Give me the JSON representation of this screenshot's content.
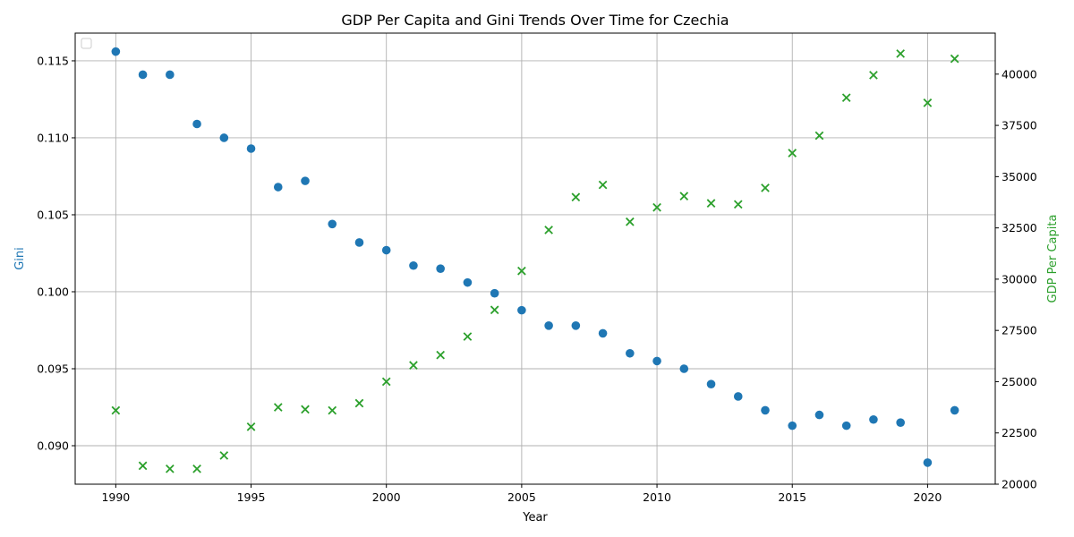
{
  "chart_data": {
    "type": "scatter",
    "title": "GDP Per Capita and Gini Trends Over Time for Czechia",
    "xlabel": "Year",
    "ylabel_left": "Gini",
    "ylabel_right": "GDP Per Capita",
    "xlim": [
      1988.5,
      2022.5
    ],
    "ylim_left": [
      0.0875,
      0.1168
    ],
    "ylim_right": [
      20000,
      42000
    ],
    "x_ticks": [
      1990,
      1995,
      2000,
      2005,
      2010,
      2015,
      2020
    ],
    "y_ticks_left": [
      0.09,
      0.095,
      0.1,
      0.105,
      0.11,
      0.115
    ],
    "y_tick_labels_left": [
      "0.090",
      "0.095",
      "0.100",
      "0.105",
      "0.110",
      "0.115"
    ],
    "y_ticks_right": [
      20000,
      22500,
      25000,
      27500,
      30000,
      32500,
      35000,
      37500,
      40000
    ],
    "grid": true,
    "legend": "upper-left (empty)",
    "colors": {
      "gini": "#1f77b4",
      "gdp": "#2ca02c"
    },
    "series": [
      {
        "name": "Gini",
        "axis": "left",
        "marker": "circle",
        "x": [
          1990,
          1991,
          1992,
          1993,
          1994,
          1995,
          1996,
          1997,
          1998,
          1999,
          2000,
          2001,
          2002,
          2003,
          2004,
          2005,
          2006,
          2007,
          2008,
          2009,
          2010,
          2011,
          2012,
          2013,
          2014,
          2015,
          2016,
          2017,
          2018,
          2019,
          2020,
          2021
        ],
        "y": [
          0.1156,
          0.1141,
          0.1141,
          0.1109,
          0.11,
          0.1093,
          0.1068,
          0.1072,
          0.1044,
          0.1032,
          0.1027,
          0.1017,
          0.1015,
          0.1006,
          0.0999,
          0.0988,
          0.0978,
          0.0978,
          0.0973,
          0.096,
          0.0955,
          0.095,
          0.094,
          0.0932,
          0.0923,
          0.0913,
          0.092,
          0.0913,
          0.0917,
          0.0915,
          0.0889,
          0.0923
        ]
      },
      {
        "name": "GDP Per Capita",
        "axis": "right",
        "marker": "x",
        "x": [
          1990,
          1991,
          1992,
          1993,
          1994,
          1995,
          1996,
          1997,
          1998,
          1999,
          2000,
          2001,
          2002,
          2003,
          2004,
          2005,
          2006,
          2007,
          2008,
          2009,
          2010,
          2011,
          2012,
          2013,
          2014,
          2015,
          2016,
          2017,
          2018,
          2019,
          2020,
          2021
        ],
        "y": [
          23600,
          20900,
          20750,
          20750,
          21400,
          22800,
          23750,
          23650,
          23600,
          23950,
          25000,
          25800,
          26300,
          27200,
          28500,
          30400,
          32400,
          34000,
          34600,
          32800,
          33500,
          34050,
          33700,
          33650,
          34450,
          36150,
          37000,
          38850,
          39950,
          41000,
          38600,
          40750
        ]
      }
    ]
  }
}
